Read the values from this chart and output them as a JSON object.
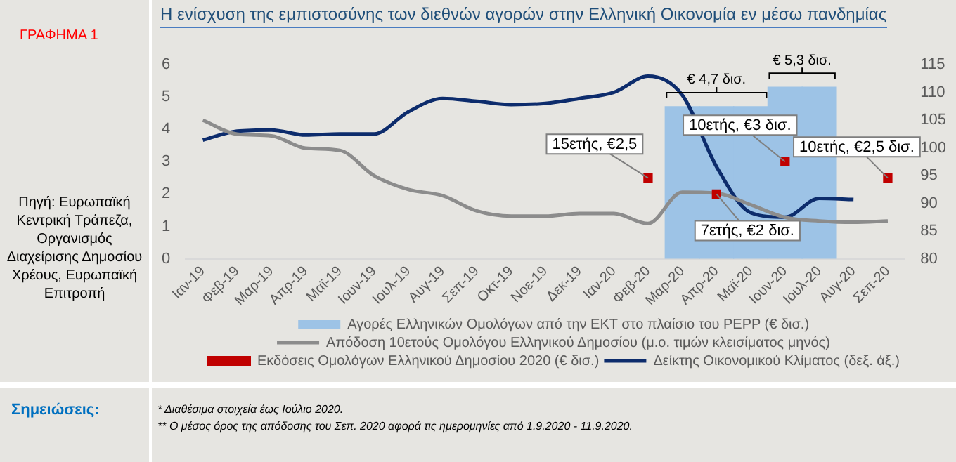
{
  "chart_data": {
    "type": "line",
    "title": "Η ενίσχυση της εμπιστοσύνης των διεθνών αγορών στην Ελληνική Οικονομία εν μέσω πανδημίας",
    "categories": [
      "Ιαν-19",
      "Φεβ-19",
      "Μαρ-19",
      "Απρ-19",
      "Μαϊ-19",
      "Ιουν-19",
      "Ιουλ-19",
      "Αυγ-19",
      "Σεπ-19",
      "Οκτ-19",
      "Νοε-19",
      "Δεκ-19",
      "Ιαν-20",
      "Φεβ-20",
      "Μαρ-20",
      "Απρ-20",
      "Μαϊ-20",
      "Ιουν-20",
      "Ιουλ-20",
      "Αυγ-20",
      "Σεπ-20"
    ],
    "series": [
      {
        "type": "bar",
        "name": "Αγορές Ελληνικών Ομολόγων από την ΕΚΤ στο πλαίσιο του PEPP (€ δισ.)",
        "color": "#9dc3e6",
        "values": [
          null,
          null,
          null,
          null,
          null,
          null,
          null,
          null,
          null,
          null,
          null,
          null,
          null,
          null,
          4.7,
          4.7,
          4.7,
          5.3,
          5.3,
          null,
          null
        ]
      },
      {
        "name": "Απόδοση 10ετούς Ομολόγου Ελληνικού Δημοσίου (μ.ο. τιμών κλεισίματος μηνός)",
        "color": "#8c8c8c",
        "values": [
          4.28,
          3.85,
          3.8,
          3.42,
          3.35,
          2.57,
          2.14,
          1.95,
          1.48,
          1.32,
          1.32,
          1.4,
          1.4,
          1.09,
          2.06,
          2.03,
          1.67,
          1.28,
          1.17,
          1.13,
          1.17
        ]
      },
      {
        "type": "scatter",
        "marker": "square",
        "name": "Εκδόσεις Ομολόγων Ελληνικού Δημοσίου 2020 (€ δισ.)",
        "color": "#c00000",
        "values": [
          null,
          null,
          null,
          null,
          null,
          null,
          null,
          null,
          null,
          null,
          null,
          null,
          null,
          2.5,
          null,
          2,
          null,
          3,
          null,
          null,
          2.5
        ],
        "value_labels": [
          null,
          null,
          null,
          null,
          null,
          null,
          null,
          null,
          null,
          null,
          null,
          null,
          null,
          "15ετής, €2,5",
          null,
          "7ετής, €2 δισ.",
          null,
          "10ετής, €3 δισ.",
          null,
          null,
          "10ετής, €2,5 δισ."
        ]
      },
      {
        "axis": "y2",
        "name": "Δείκτης Οικονομικού Κλίματος (δεξ. άξ.)",
        "color": "#0d2c6c",
        "values": [
          101.4,
          103,
          103.2,
          102.3,
          102.5,
          102.5,
          106.5,
          108.9,
          108.4,
          107.8,
          108,
          108.9,
          110,
          112.9,
          109.5,
          96.6,
          88.3,
          87.5,
          90.9,
          90.7,
          null
        ]
      }
    ],
    "ylim": [
      0,
      6
    ],
    "yticks": [
      0,
      1,
      2,
      3,
      4,
      5,
      6
    ],
    "y2lim": [
      80,
      115
    ],
    "y2ticks": [
      80,
      85,
      90,
      95,
      100,
      105,
      110,
      115
    ],
    "legend": "bottom",
    "grid": false,
    "annotations": [
      "ΓΡΑΦΗΜΑ 1",
      "Πηγή: Ευρωπαϊκή Κεντρική Τράπεζα, Οργανισμός Διαχείρισης Δημοσίου Χρέους, Ευρωπαϊκή Επιτροπή",
      "Σημειώσεις:",
      "* Διαθέσιμα στοιχεία έως Ιούλιο 2020.",
      "** Ο μέσος όρος της απόδοσης του Σεπ. 2020 αφορά τις ημερομηνίες από 1.9.2020 - 11.9.2020.",
      {
        "text": "€ 4,7 δισ.",
        "x": "Απρ-20",
        "y": 4.7
      },
      {
        "text": "€ 5,3 δισ.",
        "x": "Ιουν-20",
        "y": 5.3
      }
    ]
  }
}
